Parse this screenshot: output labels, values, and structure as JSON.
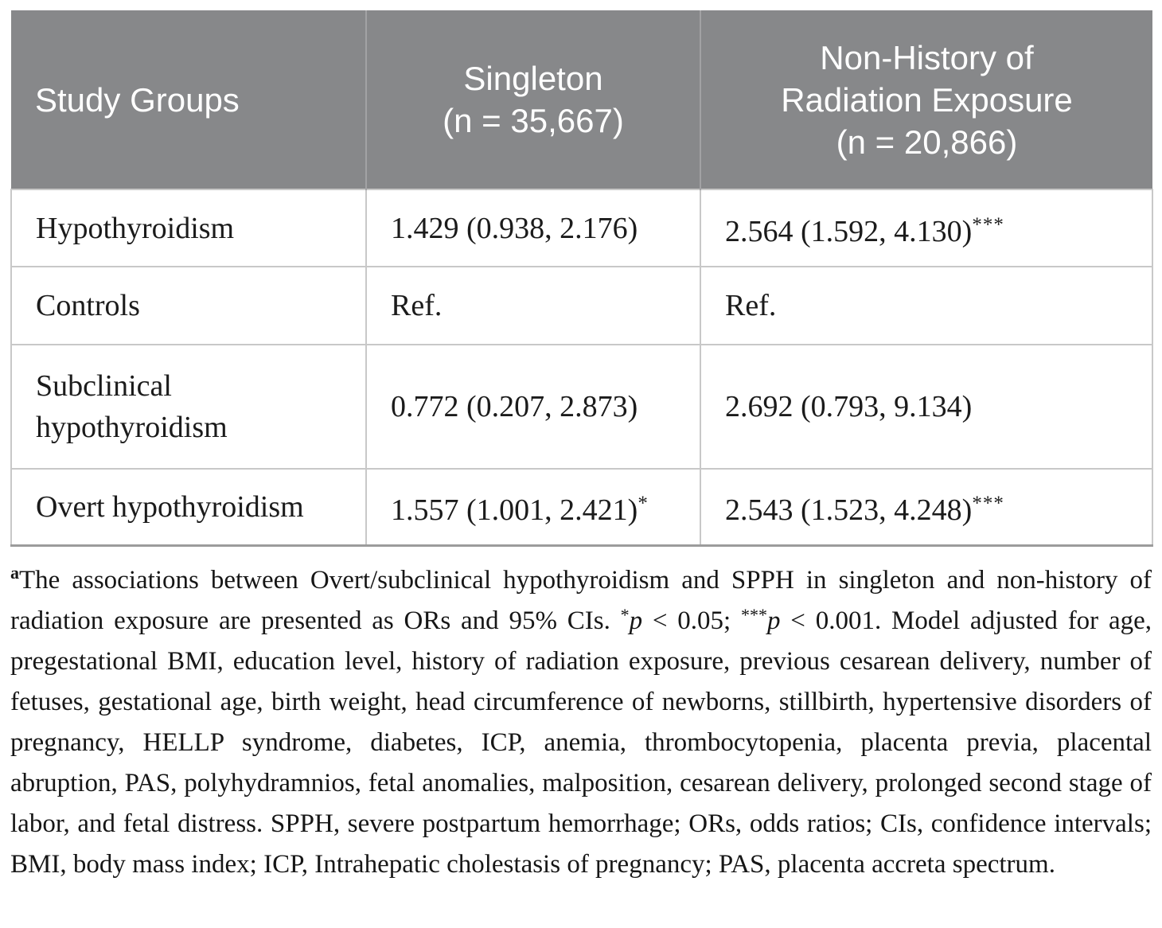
{
  "table": {
    "header": [
      {
        "id": "study-groups",
        "align": "left",
        "lines": [
          "Study Groups"
        ]
      },
      {
        "id": "singleton",
        "align": "center",
        "lines": [
          "Singleton",
          "(n = 35,667)"
        ]
      },
      {
        "id": "non-history",
        "align": "center",
        "lines": [
          "Non-History of",
          "Radiation Exposure",
          "(n = 20,866)"
        ]
      }
    ],
    "rows": [
      {
        "group": {
          "text": "Hypothyroidism",
          "sup": ""
        },
        "singleton": {
          "text": "1.429 (0.938, 2.176)",
          "sup": ""
        },
        "non_history": {
          "text": "2.564 (1.592, 4.130)",
          "sup": "***"
        }
      },
      {
        "group": {
          "text": "Controls",
          "sup": ""
        },
        "singleton": {
          "text": "Ref.",
          "sup": ""
        },
        "non_history": {
          "text": "Ref.",
          "sup": ""
        }
      },
      {
        "group": {
          "text": "Subclinical hypothyroidism",
          "sup": ""
        },
        "singleton": {
          "text": "0.772 (0.207, 2.873)",
          "sup": ""
        },
        "non_history": {
          "text": "2.692 (0.793, 9.134)",
          "sup": ""
        }
      },
      {
        "group": {
          "text": "Overt hypothyroidism",
          "sup": ""
        },
        "singleton": {
          "text": "1.557 (1.001, 2.421)",
          "sup": "*"
        },
        "non_history": {
          "text": "2.543 (1.523, 4.248)",
          "sup": "***"
        }
      }
    ]
  },
  "footnote": {
    "marker": "a",
    "segments": [
      {
        "t": "The associations between Overt/subclinical hypothyroidism and SPPH in singleton and non-history of radiation exposure are presented as ORs and 95% CIs. ",
        "s": "n"
      },
      {
        "t": "*",
        "s": "sup"
      },
      {
        "t": "p",
        "s": "i"
      },
      {
        "t": " < 0.05; ",
        "s": "n"
      },
      {
        "t": "***",
        "s": "sup"
      },
      {
        "t": "p",
        "s": "i"
      },
      {
        "t": " < 0.001. Model adjusted for age, pregestational BMI, education level, history of radiation exposure, previous cesarean delivery, number of fetuses, gestational age, birth weight, head circumference of newborns, stillbirth, hypertensive disorders of pregnancy, HELLP syndrome, diabetes, ICP, anemia, thrombocytopenia, placenta previa, placental abruption, PAS, polyhydramnios, fetal anomalies, malposition, cesarean delivery, prolonged second stage of labor, and fetal distress. SPPH, severe postpartum hemorrhage; ORs, odds ratios; CIs, confidence intervals; BMI, body mass index; ICP, Intrahepatic cholestasis of pregnancy; PAS, placenta accreta spectrum.",
        "s": "n"
      }
    ]
  },
  "colors": {
    "header_bg": "#87888a",
    "header_text": "#ffffff",
    "body_text": "#1b1b1b",
    "grid": "#c8c8c8",
    "bottom_rule": "#9c9c9c"
  }
}
